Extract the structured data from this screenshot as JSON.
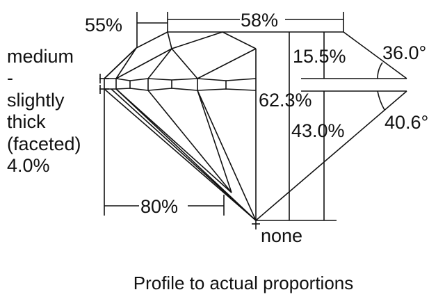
{
  "diagram": {
    "caption": "Profile to actual proportions",
    "crown_height_left_label": "55%",
    "table_label": "58%",
    "crown_height_label": "15.5%",
    "crown_angle_label": "36.0°",
    "total_depth_label": "62.3%",
    "pavilion_depth_label": "43.0%",
    "pavilion_angle_label": "40.6°",
    "lower_half_label": "80%",
    "culet_label": "none",
    "girdle_lines": [
      "medium",
      "-",
      "slightly",
      "thick",
      "(faceted)",
      "4.0%"
    ]
  }
}
